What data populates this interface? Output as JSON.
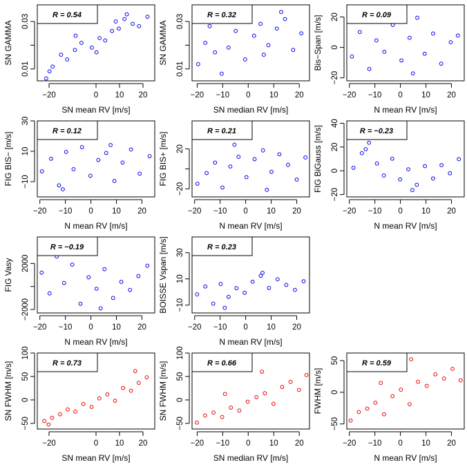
{
  "colors": {
    "blue": "#0000ee",
    "red": "#ee0000"
  },
  "chart_data": [
    {
      "type": "scatter",
      "color": "blue",
      "r_label": "R = 0.54",
      "xlabel": "SN mean RV [m/s]",
      "ylabel": "SN GAMMA",
      "xlim": [
        -25,
        25
      ],
      "ylim": [
        0.005,
        0.037
      ],
      "xticks": [
        -20,
        0,
        10,
        20
      ],
      "yticks": [
        0.01,
        0.02,
        0.03
      ],
      "ytick_labels": [
        "0.01",
        "",
        "0.03"
      ],
      "r": 0.54,
      "x": [
        -21.2,
        -18.5,
        -14.9,
        -12.3,
        -9.0,
        -6.2,
        -1.8,
        1.5,
        3.9,
        6.8,
        9.7,
        12.1,
        15.6,
        18.3,
        21.9,
        -19.8,
        -8.7,
        0.2,
        8.4,
        13.1
      ],
      "y": [
        0.006,
        0.011,
        0.016,
        0.014,
        0.018,
        0.021,
        0.019,
        0.023,
        0.022,
        0.026,
        0.027,
        0.031,
        0.029,
        0.028,
        0.032,
        0.009,
        0.024,
        0.017,
        0.03,
        0.033
      ]
    },
    {
      "type": "scatter",
      "color": "blue",
      "r_label": "R = 0.32",
      "xlabel": "SN median RV [m/s]",
      "ylabel": "SN GAMMA",
      "xlim": [
        -22,
        24
      ],
      "ylim": [
        0.005,
        0.037
      ],
      "xticks": [
        -20,
        -10,
        0,
        10,
        20
      ],
      "yticks": [
        0.01,
        0.02,
        0.03
      ],
      "ytick_labels": [
        "0.01",
        "",
        "0.03"
      ],
      "r": 0.32,
      "x": [
        -19.6,
        -16.8,
        -13.0,
        -10.4,
        -7.7,
        -4.9,
        -1.2,
        2.3,
        4.8,
        7.9,
        11.2,
        14.4,
        17.6,
        20.8,
        -15.1,
        -3.3,
        6.1,
        12.9
      ],
      "y": [
        0.012,
        0.021,
        0.017,
        0.008,
        0.019,
        0.026,
        0.014,
        0.024,
        0.029,
        0.02,
        0.027,
        0.031,
        0.018,
        0.025,
        0.028,
        0.032,
        0.016,
        0.034
      ]
    },
    {
      "type": "scatter",
      "color": "blue",
      "r_label": "R = 0.09",
      "xlabel": "N mean RV [m/s]",
      "ylabel": "Bis−Span [m/s]",
      "xlim": [
        -21,
        25
      ],
      "ylim": [
        -22,
        28
      ],
      "xticks": [
        -20,
        -10,
        0,
        10,
        20
      ],
      "yticks": [
        -20,
        0,
        20
      ],
      "ytick_labels": [
        "−20",
        "0",
        "20"
      ],
      "r": 0.09,
      "x": [
        -19.0,
        -15.9,
        -12.2,
        -9.4,
        -6.3,
        -3.0,
        0.4,
        3.6,
        6.6,
        9.5,
        12.8,
        16.0,
        19.7,
        22.5,
        -8.1,
        4.9
      ],
      "y": [
        -6.0,
        10.1,
        -14.2,
        4.6,
        -2.9,
        14.8,
        -8.6,
        6.3,
        19.5,
        -4.2,
        9.1,
        -10.7,
        3.4,
        7.8,
        21.3,
        -17.1
      ]
    },
    {
      "type": "scatter",
      "color": "blue",
      "r_label": "R = 0.12",
      "xlabel": "N mean RV [m/s]",
      "ylabel": "FIG BIS− [m/s]",
      "xlim": [
        -21,
        25
      ],
      "ylim": [
        -20,
        30
      ],
      "xticks": [
        -20,
        -10,
        0,
        10,
        20
      ],
      "yticks": [
        -10,
        10,
        30
      ],
      "ytick_labels": [
        "−10",
        "10",
        "30"
      ],
      "r": 0.12,
      "x": [
        -19.2,
        -15.6,
        -12.5,
        -9.7,
        -6.8,
        -3.5,
        -0.2,
        2.9,
        6.0,
        9.2,
        12.4,
        15.7,
        19.1,
        23.0,
        -11.0,
        7.7
      ],
      "y": [
        -3.2,
        5.1,
        -12.4,
        9.6,
        -1.8,
        12.7,
        -6.1,
        4.3,
        8.9,
        -9.5,
        2.6,
        11.2,
        -4.7,
        6.8,
        -15.0,
        14.1
      ]
    },
    {
      "type": "scatter",
      "color": "blue",
      "r_label": "R = 0.21",
      "xlabel": "N mean RV [m/s]",
      "ylabel": "FIG BIS+ [m/s]",
      "xlim": [
        -21,
        25
      ],
      "ylim": [
        -28,
        48
      ],
      "xticks": [
        -20,
        -10,
        0,
        10,
        20
      ],
      "yticks": [
        -20,
        0,
        20
      ],
      "ytick_labels": [
        "−20",
        "",
        "20"
      ],
      "r": 0.21,
      "x": [
        -18.9,
        -15.3,
        -12.0,
        -9.1,
        -6.0,
        -2.8,
        0.3,
        3.5,
        6.8,
        10.1,
        13.2,
        16.6,
        20.0,
        23.4,
        -4.4,
        8.3
      ],
      "y": [
        -14.8,
        -4.2,
        6.3,
        -18.6,
        2.4,
        12.1,
        -8.3,
        9.7,
        18.5,
        -2.9,
        14.6,
        4.1,
        -10.7,
        11.4,
        24.2,
        -20.9
      ]
    },
    {
      "type": "scatter",
      "color": "blue",
      "r_label": "R = −0.23",
      "xlabel": "N mean RV [m/s]",
      "ylabel": "FIG BiGauss [m/s]",
      "xlim": [
        -21,
        25
      ],
      "ylim": [
        -22,
        42
      ],
      "xticks": [
        -20,
        -10,
        0,
        10,
        20
      ],
      "yticks": [
        -20,
        0,
        20,
        40
      ],
      "ytick_labels": [
        "−20",
        "0",
        "20",
        "40"
      ],
      "r": -0.23,
      "x": [
        -18.4,
        -15.1,
        -12.3,
        -9.2,
        -6.5,
        -3.2,
        -0.1,
        3.1,
        6.4,
        9.6,
        12.8,
        16.1,
        19.4,
        22.9,
        -13.6,
        4.7
      ],
      "y": [
        2.5,
        14.8,
        23.6,
        6.1,
        -4.0,
        10.2,
        -7.3,
        1.2,
        -11.8,
        3.9,
        -6.5,
        4.7,
        -2.1,
        9.8,
        18.2,
        -16.3
      ]
    },
    {
      "type": "scatter",
      "color": "blue",
      "r_label": "R = −0.19",
      "xlabel": "N mean RV [m/s]",
      "ylabel": "FIG Vasy",
      "xlim": [
        -21,
        25
      ],
      "ylim": [
        -2300,
        4300
      ],
      "xticks": [
        -20,
        -10,
        0,
        10,
        20
      ],
      "yticks": [
        -2000,
        0,
        2000
      ],
      "ytick_labels": [
        "−2000",
        "",
        "2000"
      ],
      "r": -0.19,
      "x": [
        -19.3,
        -16.2,
        -13.4,
        -10.5,
        -7.3,
        -4.1,
        -0.9,
        2.2,
        5.3,
        8.7,
        11.9,
        15.3,
        18.6,
        22.1,
        -14.6,
        3.8
      ],
      "y": [
        1200.0,
        -600.0,
        2600.0,
        300.0,
        1900.0,
        -1500.0,
        800.0,
        -200.0,
        1500.0,
        -1000.0,
        400.0,
        -300.0,
        900.0,
        1800.0,
        3000.0,
        -1900.0
      ]
    },
    {
      "type": "scatter",
      "color": "blue",
      "r_label": "R = 0.23",
      "xlabel": "N mean RV [m/s]",
      "ylabel": "BOISSE Vspan [m/s]",
      "xlim": [
        -21,
        25
      ],
      "ylim": [
        -16,
        42
      ],
      "xticks": [
        -20,
        -10,
        0,
        10,
        20
      ],
      "yticks": [
        -10,
        10,
        30
      ],
      "ytick_labels": [
        "−10",
        "10",
        "30"
      ],
      "r": 0.23,
      "x": [
        -19.0,
        -15.8,
        -12.7,
        -9.8,
        -6.7,
        -3.6,
        -0.4,
        2.7,
        5.9,
        9.1,
        12.5,
        15.9,
        19.3,
        22.7,
        -8.2,
        6.6
      ],
      "y": [
        -1.8,
        4.2,
        -8.9,
        6.1,
        -3.7,
        2.9,
        -0.6,
        7.8,
        12.4,
        3.1,
        9.7,
        5.4,
        1.6,
        8.2,
        -12.1,
        14.6
      ]
    },
    {
      "type": "scatter",
      "color": "red",
      "r_label": "R = 0.73",
      "xlabel": "SN mean RV [m/s]",
      "ylabel": "SN FWHM [m/s]",
      "xlim": [
        -25,
        25
      ],
      "ylim": [
        -62,
        100
      ],
      "xticks": [
        -20,
        0,
        10,
        20
      ],
      "yticks": [
        -50,
        0,
        50,
        100
      ],
      "ytick_labels": [
        "−50",
        "0",
        "50",
        "100"
      ],
      "r": 0.73,
      "x": [
        -22.0,
        -18.7,
        -15.3,
        -12.1,
        -8.8,
        -5.4,
        -1.9,
        1.4,
        4.8,
        8.1,
        11.5,
        14.9,
        18.2,
        21.6,
        -20.2,
        16.7
      ],
      "y": [
        -45.0,
        -38.1,
        -30.6,
        -20.4,
        -24.8,
        -8.6,
        -14.9,
        3.2,
        11.8,
        -1.7,
        25.3,
        19.6,
        36.4,
        48.2,
        -52.4,
        61.5
      ]
    },
    {
      "type": "scatter",
      "color": "red",
      "r_label": "R = 0.66",
      "xlabel": "SN median RV [m/s]",
      "ylabel": "SN FWHM [m/s]",
      "xlim": [
        -22,
        24
      ],
      "ylim": [
        -62,
        100
      ],
      "xticks": [
        -20,
        -10,
        0,
        10,
        20
      ],
      "yticks": [
        -50,
        0,
        50,
        100
      ],
      "ytick_labels": [
        "−50",
        "0",
        "50",
        "100"
      ],
      "r": 0.66,
      "x": [
        -20.1,
        -16.9,
        -13.6,
        -10.2,
        -6.8,
        -3.5,
        -0.2,
        3.2,
        6.5,
        9.9,
        13.3,
        16.6,
        19.9,
        22.8,
        -9.1,
        5.4
      ],
      "y": [
        -48.3,
        -33.2,
        -26.9,
        -36.5,
        -16.4,
        -22.7,
        -3.8,
        5.9,
        14.3,
        -8.1,
        27.6,
        38.4,
        21.2,
        53.1,
        12.6,
        60.2
      ]
    },
    {
      "type": "scatter",
      "color": "red",
      "r_label": "R = 0.59",
      "xlabel": "N mean RV [m/s]",
      "ylabel": "FWHM [m/s]",
      "xlim": [
        -21,
        25
      ],
      "ylim": [
        -58,
        62
      ],
      "xticks": [
        -20,
        -10,
        0,
        10,
        20
      ],
      "yticks": [
        -50,
        0,
        50
      ],
      "ytick_labels": [
        "−50",
        "0",
        "50"
      ],
      "r": 0.59,
      "x": [
        -19.5,
        -16.3,
        -13.0,
        -9.8,
        -6.4,
        -3.1,
        0.2,
        3.6,
        6.9,
        10.3,
        13.7,
        17.1,
        20.4,
        23.6,
        -7.7,
        4.2
      ],
      "y": [
        -44.6,
        -31.2,
        -25.7,
        -16.4,
        -34.8,
        -6.2,
        4.1,
        -18.9,
        16.5,
        10.2,
        28.3,
        21.7,
        36.9,
        18.8,
        14.7,
        52.1
      ]
    }
  ]
}
